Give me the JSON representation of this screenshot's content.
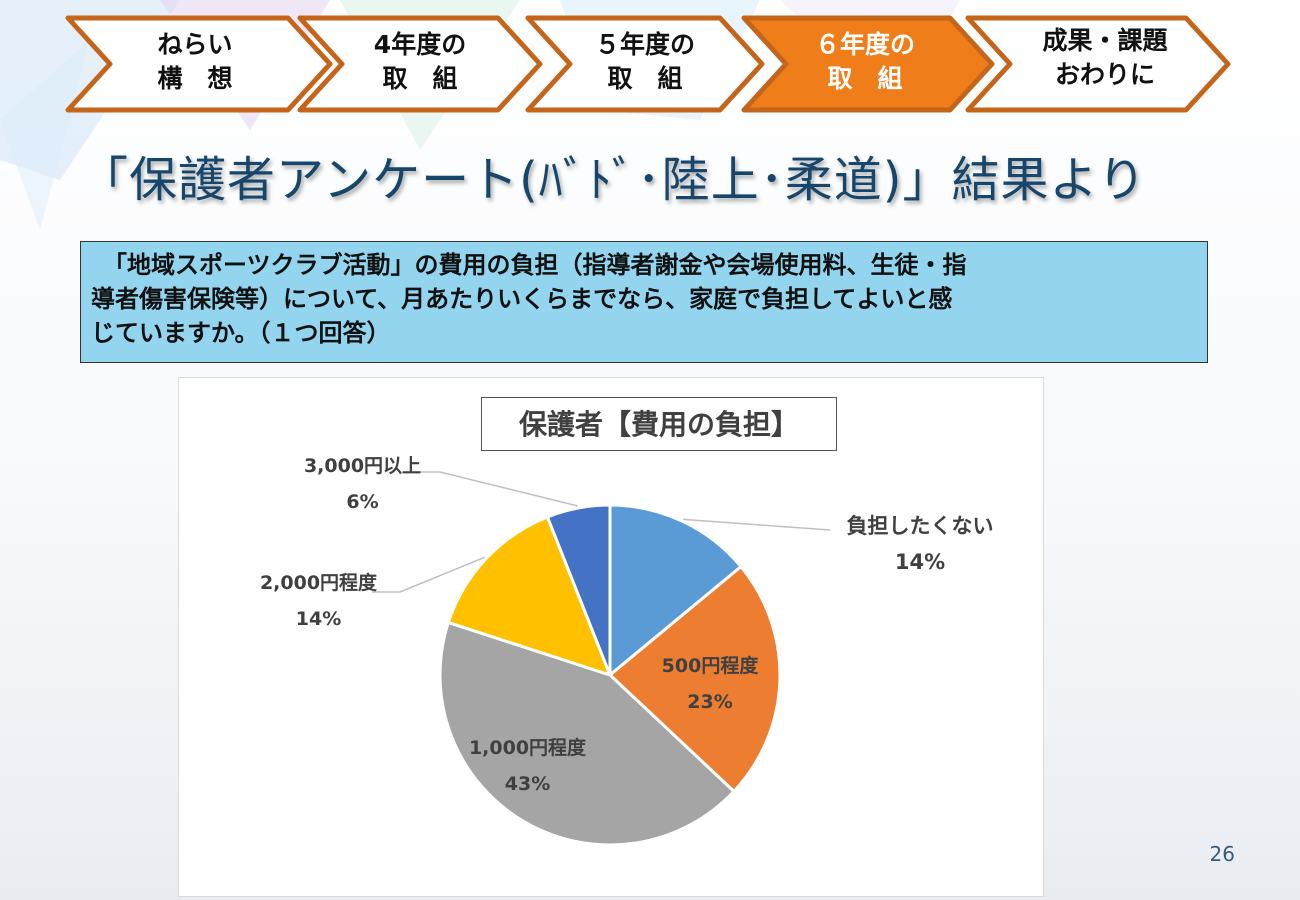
{
  "steps": [
    {
      "line1": "ねらい",
      "line2": "構　想",
      "active": false
    },
    {
      "line1": "4年度の",
      "line2": "取　組",
      "active": false
    },
    {
      "line1": "５年度の",
      "line2": "取　組",
      "active": false
    },
    {
      "line1": "６年度の",
      "line2": "取　組",
      "active": true
    },
    {
      "line1": "成果・課題",
      "line2": "おわりに",
      "active": false
    }
  ],
  "colors": {
    "step_border": "#c5651a",
    "step_active_fill": "#ef7d1a",
    "title": "#16466c",
    "question_bg": "#93d5ef"
  },
  "page_title": "「保護者アンケート(ﾊﾞﾄﾞ･陸上･柔道)」結果より",
  "question_lines": [
    "「地域スポーツクラブ活動」の費用の負担（指導者謝金や会場使用料、生徒・指",
    "導者傷害保険等）について、月あたりいくらまでなら、家庭で負担してよいと感",
    "じていますか。（１つ回答）"
  ],
  "chart_data": {
    "type": "pie",
    "title": "保護者【費用の負担】",
    "start_angle_deg": 0,
    "direction": "clockwise",
    "slices": [
      {
        "label": "負担したくない",
        "percent_label": "14%",
        "value": 14,
        "color": "#5b9bd5"
      },
      {
        "label": "500円程度",
        "percent_label": "23%",
        "value": 23,
        "color": "#ed7d31"
      },
      {
        "label": "1,000円程度",
        "percent_label": "43%",
        "value": 43,
        "color": "#a5a5a5"
      },
      {
        "label": "2,000円程度",
        "percent_label": "14%",
        "value": 14,
        "color": "#ffc000"
      },
      {
        "label": "3,000円以上",
        "percent_label": "6%",
        "value": 6,
        "color": "#4472c4"
      }
    ]
  },
  "page_number": "26"
}
